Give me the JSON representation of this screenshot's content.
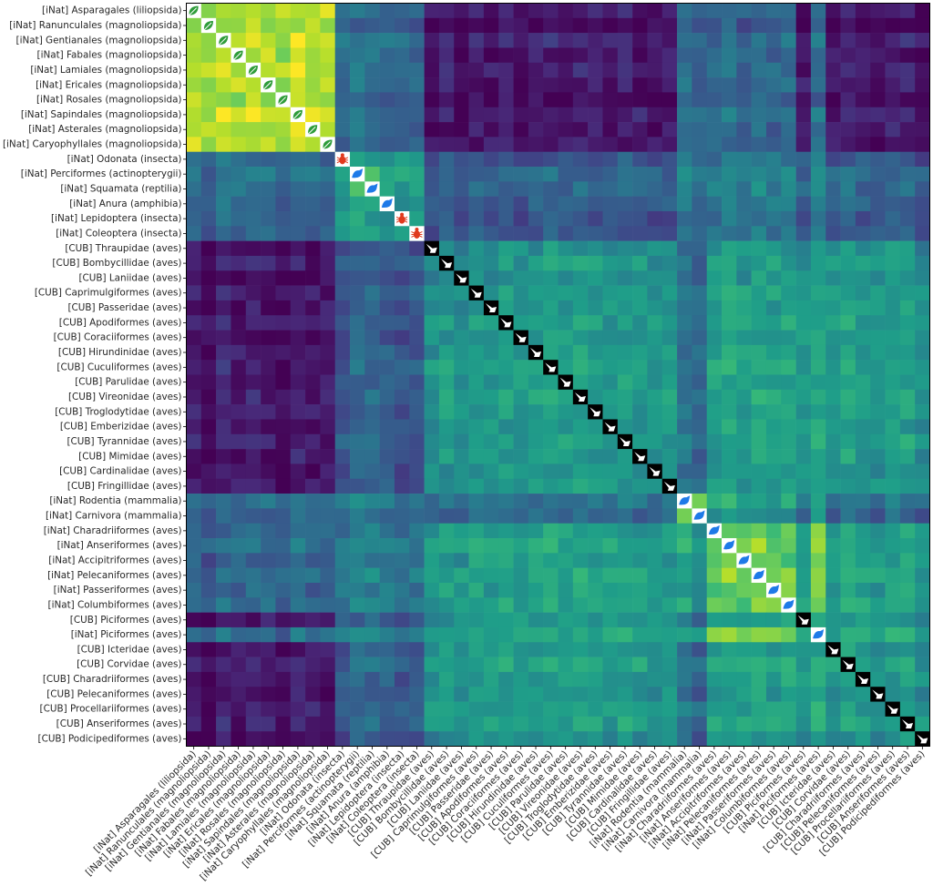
{
  "chart_data": {
    "type": "heatmap",
    "title": "",
    "xlabel": "",
    "ylabel": "",
    "colormap": "viridis",
    "labels": [
      "[iNat] Asparagales (liliopsida)",
      "[iNat] Ranunculales (magnoliopsida)",
      "[iNat] Gentianales (magnoliopsida)",
      "[iNat] Fabales (magnoliopsida)",
      "[iNat] Lamiales (magnoliopsida)",
      "[iNat] Ericales (magnoliopsida)",
      "[iNat] Rosales (magnoliopsida)",
      "[iNat] Sapindales (magnoliopsida)",
      "[iNat] Asterales (magnoliopsida)",
      "[iNat] Caryophyllales (magnoliopsida)",
      "[iNat] Odonata (insecta)",
      "[iNat] Perciformes (actinopterygii)",
      "[iNat] Squamata (reptilia)",
      "[iNat] Anura (amphibia)",
      "[iNat] Lepidoptera (insecta)",
      "[iNat] Coleoptera (insecta)",
      "[CUB] Thraupidae (aves)",
      "[CUB] Bombycillidae (aves)",
      "[CUB] Laniidae (aves)",
      "[CUB] Caprimulgiformes (aves)",
      "[CUB] Passeridae (aves)",
      "[CUB] Apodiformes (aves)",
      "[CUB] Coraciiformes (aves)",
      "[CUB] Hirundinidae (aves)",
      "[CUB] Cuculiformes (aves)",
      "[CUB] Parulidae (aves)",
      "[CUB] Vireonidae (aves)",
      "[CUB] Troglodytidae (aves)",
      "[CUB] Emberizidae (aves)",
      "[CUB] Tyrannidae (aves)",
      "[CUB] Mimidae (aves)",
      "[CUB] Cardinalidae (aves)",
      "[CUB] Fringillidae (aves)",
      "[iNat] Rodentia (mammalia)",
      "[iNat] Carnivora (mammalia)",
      "[iNat] Charadriiformes (aves)",
      "[iNat] Anseriformes (aves)",
      "[iNat] Accipitriformes (aves)",
      "[iNat] Pelecaniformes (aves)",
      "[iNat] Passeriformes (aves)",
      "[iNat] Columbiformes (aves)",
      "[CUB] Piciformes (aves)",
      "[iNat] Piciformes (aves)",
      "[CUB] Icteridae (aves)",
      "[CUB] Corvidae (aves)",
      "[CUB] Charadriiformes (aves)",
      "[CUB] Pelecaniformes (aves)",
      "[CUB] Procellariiformes (aves)",
      "[CUB] Anseriformes (aves)",
      "[CUB] Podicipediformes (aves)"
    ],
    "groups": [
      {
        "name": "iNat plants",
        "start": 0,
        "end": 9,
        "icon": "leaf-icon"
      },
      {
        "name": "iNat insects",
        "start": 10,
        "end": 10,
        "icon": "bug-icon"
      },
      {
        "name": "iNat animals",
        "start": 11,
        "end": 13,
        "icon": "animal-icon"
      },
      {
        "name": "iNat insects",
        "start": 14,
        "end": 15,
        "icon": "bug-icon"
      },
      {
        "name": "CUB birds",
        "start": 16,
        "end": 32,
        "icon": "bird-icon"
      },
      {
        "name": "iNat mammals",
        "start": 33,
        "end": 34,
        "icon": "animal-icon"
      },
      {
        "name": "iNat birds",
        "start": 35,
        "end": 40,
        "icon": "animal-icon"
      },
      {
        "name": "CUB birds",
        "start": 41,
        "end": 41,
        "icon": "bird-icon"
      },
      {
        "name": "iNat birds",
        "start": 42,
        "end": 42,
        "icon": "animal-icon"
      },
      {
        "name": "CUB birds",
        "start": 43,
        "end": 49,
        "icon": "bird-icon"
      }
    ],
    "value_range": [
      0,
      1
    ],
    "cluster_means": {
      "plants-plants": 0.9,
      "insects-insects": 0.65,
      "plants-insects": 0.35,
      "plants-cub": 0.06,
      "plants-inat-aves": 0.3,
      "insects-cub": 0.25,
      "cub-cub": 0.55,
      "cub-inat-aves": 0.55,
      "inat-aves-inat-aves": 0.75
    },
    "colors": {
      "diagonal_cub": "#000000",
      "diagonal_inat": "#ffffff",
      "plant_icon": "#2e9c3a",
      "insect_icon": "#e03a1e",
      "animal_icon": "#1e7ae8",
      "frame": "#000000"
    }
  }
}
